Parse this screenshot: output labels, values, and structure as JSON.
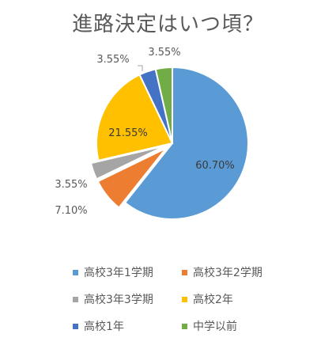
{
  "chart_data": {
    "type": "pie",
    "title": "進路決定はいつ頃？",
    "slices": [
      {
        "label": "高校3年1学期",
        "value": 60.7,
        "data_label": "60.70%",
        "color": "#5b9bd5"
      },
      {
        "label": "高校3年2学期",
        "value": 7.1,
        "data_label": "7.10%",
        "color": "#ed7d31"
      },
      {
        "label": "高校3年3学期",
        "value": 3.55,
        "data_label": "3.55%",
        "color": "#a5a5a5"
      },
      {
        "label": "高校2年",
        "value": 21.55,
        "data_label": "21.55%",
        "color": "#ffc000"
      },
      {
        "label": "高校1年",
        "value": 3.55,
        "data_label": "3.55%",
        "color": "#4472c4"
      },
      {
        "label": "中学以前",
        "value": 3.55,
        "data_label": "3.55%",
        "color": "#70ad47"
      }
    ],
    "legend_position": "bottom",
    "start_angle_deg": 0,
    "direction": "clockwise"
  }
}
